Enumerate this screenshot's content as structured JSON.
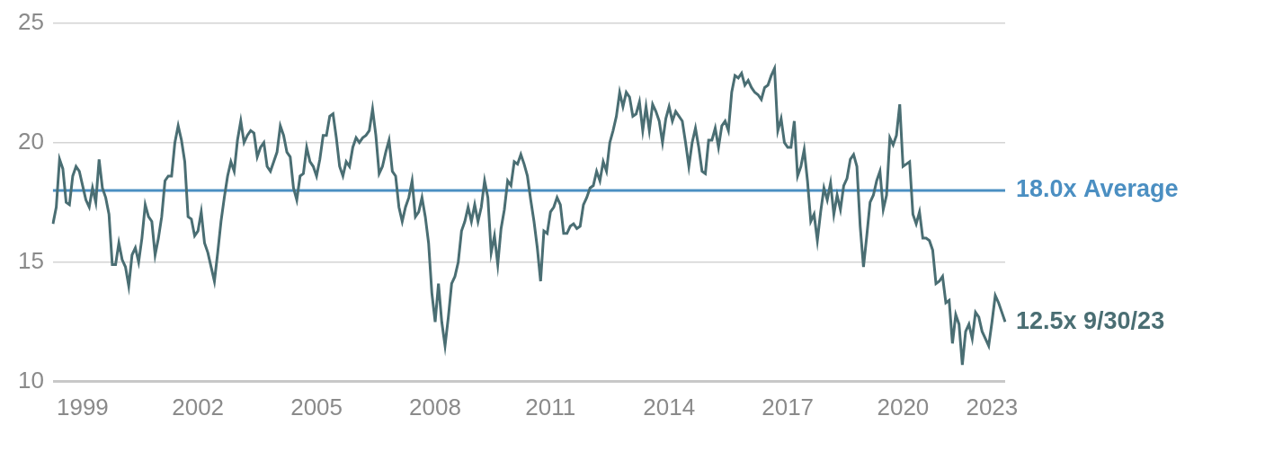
{
  "chart_data": {
    "type": "line",
    "color": "#4a6e73",
    "grid": true,
    "categories": [
      null,
      null,
      null,
      null,
      null,
      null,
      null,
      null,
      null,
      "1999",
      null,
      null,
      null,
      null,
      null,
      null,
      null,
      null,
      null,
      null,
      null,
      null,
      null,
      null,
      null,
      null,
      null,
      null,
      null,
      null,
      null,
      null,
      null,
      null,
      null,
      null,
      null,
      null,
      null,
      null,
      null,
      null,
      null,
      null,
      "2002",
      null,
      null,
      null,
      null,
      null,
      null,
      null,
      null,
      null,
      null,
      null,
      null,
      null,
      null,
      null,
      null,
      null,
      null,
      null,
      null,
      null,
      null,
      null,
      null,
      null,
      null,
      null,
      null,
      null,
      null,
      null,
      null,
      null,
      null,
      null,
      "2005",
      null,
      null,
      null,
      null,
      null,
      null,
      null,
      null,
      null,
      null,
      null,
      null,
      null,
      null,
      null,
      null,
      null,
      null,
      null,
      null,
      null,
      null,
      null,
      null,
      null,
      null,
      null,
      null,
      null,
      null,
      null,
      null,
      null,
      null,
      null,
      "2008",
      null,
      null,
      null,
      null,
      null,
      null,
      null,
      null,
      null,
      null,
      null,
      null,
      null,
      null,
      null,
      null,
      null,
      null,
      null,
      null,
      null,
      null,
      null,
      null,
      null,
      null,
      null,
      null,
      null,
      null,
      null,
      null,
      null,
      null,
      "2011",
      null,
      null,
      null,
      null,
      null,
      null,
      null,
      null,
      null,
      null,
      null,
      null,
      null,
      null,
      null,
      null,
      null,
      null,
      null,
      null,
      null,
      null,
      null,
      null,
      null,
      null,
      null,
      null,
      null,
      null,
      null,
      null,
      null,
      null,
      null,
      "2014",
      null,
      null,
      null,
      null,
      null,
      null,
      null,
      null,
      null,
      null,
      null,
      null,
      null,
      null,
      null,
      null,
      null,
      null,
      null,
      null,
      null,
      null,
      null,
      null,
      null,
      null,
      null,
      null,
      null,
      null,
      null,
      null,
      null,
      null,
      null,
      "2017",
      null,
      null,
      null,
      null,
      null,
      null,
      null,
      null,
      null,
      null,
      null,
      null,
      null,
      null,
      null,
      null,
      null,
      null,
      null,
      null,
      null,
      null,
      null,
      null,
      null,
      null,
      null,
      null,
      null,
      null,
      null,
      null,
      null,
      null,
      "2020",
      null,
      null,
      null,
      null,
      null,
      null,
      null,
      null,
      null,
      null,
      null,
      null,
      null,
      null,
      null,
      null,
      null,
      null,
      null,
      null,
      null,
      null,
      null,
      null,
      null,
      null,
      "2023",
      null,
      null,
      null,
      null
    ],
    "values": [
      16.6,
      17.3,
      19.3,
      18.9,
      17.5,
      17.4,
      18.6,
      19.0,
      18.8,
      18.2,
      17.6,
      17.3,
      18.1,
      17.5,
      19.3,
      18.1,
      17.7,
      17.0,
      14.9,
      14.9,
      15.8,
      15.1,
      14.8,
      14.0,
      15.3,
      15.6,
      15.0,
      16.0,
      17.4,
      16.9,
      16.7,
      15.3,
      16.0,
      16.9,
      18.4,
      18.6,
      18.6,
      20.0,
      20.7,
      20.1,
      19.2,
      16.9,
      16.8,
      16.1,
      16.3,
      17.1,
      15.8,
      15.4,
      14.8,
      14.2,
      15.4,
      16.7,
      17.7,
      18.6,
      19.2,
      18.8,
      20.1,
      20.9,
      20.0,
      20.3,
      20.5,
      20.4,
      19.4,
      19.8,
      20.0,
      19.0,
      18.8,
      19.2,
      19.6,
      20.7,
      20.3,
      19.6,
      19.4,
      18.1,
      17.6,
      18.6,
      18.7,
      19.8,
      19.2,
      19.0,
      18.6,
      19.3,
      20.3,
      20.3,
      21.1,
      21.2,
      20.2,
      19.0,
      18.6,
      19.2,
      19.0,
      19.8,
      20.2,
      20.0,
      20.2,
      20.3,
      20.5,
      21.4,
      20.3,
      18.7,
      19.0,
      19.6,
      20.1,
      18.8,
      18.6,
      17.3,
      16.7,
      17.3,
      17.7,
      18.4,
      16.9,
      17.1,
      17.7,
      16.9,
      15.8,
      13.7,
      12.5,
      14.1,
      12.5,
      11.5,
      12.7,
      14.1,
      14.4,
      15.0,
      16.3,
      16.7,
      17.3,
      16.7,
      17.4,
      16.7,
      17.3,
      18.4,
      17.7,
      15.4,
      16.1,
      14.9,
      16.4,
      17.2,
      18.4,
      18.2,
      19.2,
      19.1,
      19.5,
      19.1,
      18.6,
      17.6,
      16.7,
      15.6,
      14.2,
      16.3,
      16.2,
      17.1,
      17.3,
      17.7,
      17.4,
      16.2,
      16.2,
      16.5,
      16.6,
      16.4,
      16.5,
      17.4,
      17.7,
      18.1,
      18.2,
      18.8,
      18.4,
      19.2,
      18.8,
      20.0,
      20.5,
      21.1,
      22.1,
      21.5,
      22.1,
      21.9,
      21.1,
      21.2,
      21.7,
      20.5,
      21.5,
      20.5,
      21.6,
      21.3,
      20.9,
      20.0,
      21.0,
      21.5,
      20.9,
      21.3,
      21.1,
      20.9,
      20.0,
      19.0,
      20.0,
      20.6,
      19.8,
      18.8,
      18.7,
      20.1,
      20.1,
      20.6,
      19.8,
      20.7,
      20.9,
      20.5,
      22.1,
      22.8,
      22.7,
      22.9,
      22.4,
      22.6,
      22.3,
      22.1,
      22.0,
      21.8,
      22.3,
      22.4,
      22.8,
      23.1,
      20.5,
      21.0,
      20.0,
      19.8,
      19.8,
      20.9,
      18.6,
      19.0,
      19.7,
      18.4,
      16.7,
      17.0,
      15.9,
      17.1,
      18.1,
      17.6,
      18.3,
      17.0,
      17.8,
      17.2,
      18.2,
      18.5,
      19.3,
      19.5,
      19.0,
      16.5,
      14.8,
      16.1,
      17.5,
      17.8,
      18.4,
      18.8,
      17.2,
      17.8,
      20.2,
      19.9,
      20.3,
      21.6,
      19.0,
      19.1,
      19.2,
      17.0,
      16.6,
      17.1,
      16.0,
      16.0,
      15.9,
      15.5,
      14.1,
      14.2,
      14.4,
      13.3,
      13.4,
      11.6,
      12.8,
      12.4,
      10.7,
      12.1,
      12.4,
      11.8,
      12.9,
      12.7,
      12.1,
      11.8,
      11.5,
      12.5,
      13.6,
      13.3,
      12.9,
      12.5
    ],
    "ylim": [
      10,
      25
    ],
    "yticks": [
      10,
      15,
      20,
      25
    ],
    "annotations": [
      {
        "text": "18.0x Average",
        "value": 18.0,
        "color": "#4b8fc2",
        "line_style": "solid"
      },
      {
        "text": "12.5x 9/30/23",
        "value": 12.5,
        "color": "#4a6e73"
      }
    ]
  }
}
